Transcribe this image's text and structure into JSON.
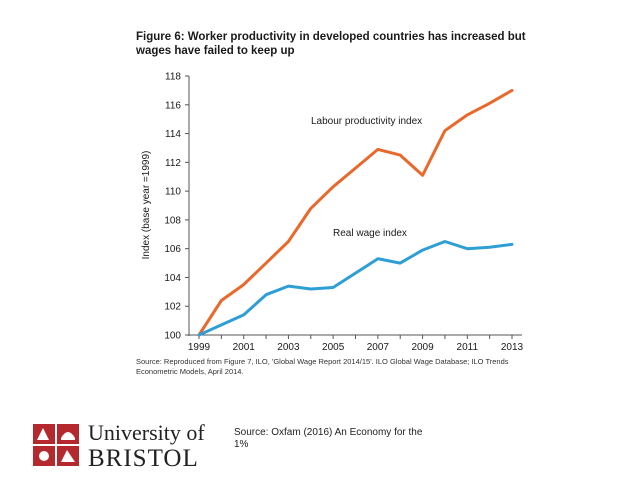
{
  "figure": {
    "title": "Figure 6: Worker productivity in developed countries has increased but wages have failed to keep up",
    "source": "Source: Reproduced from Figure 7, ILO, 'Global Wage Report 2014/15'. ILO Global Wage Database; ILO Trends Econometric Models, April 2014."
  },
  "chart_data": {
    "type": "line",
    "title": "Figure 6: Worker productivity in developed countries has increased but wages have failed to keep up",
    "xlabel": "",
    "ylabel": "Index (base year =1999)",
    "x": [
      1999,
      2000,
      2001,
      2002,
      2003,
      2004,
      2005,
      2006,
      2007,
      2008,
      2009,
      2010,
      2011,
      2012,
      2013
    ],
    "xticks": [
      "1999",
      "2001",
      "2003",
      "2005",
      "2007",
      "2009",
      "2011",
      "2013"
    ],
    "yticks": [
      "100",
      "102",
      "104",
      "106",
      "108",
      "110",
      "112",
      "114",
      "116",
      "118"
    ],
    "ylim": [
      100,
      118
    ],
    "grid": false,
    "series": [
      {
        "name": "Labour productivity index",
        "color": "#e8692b",
        "values": [
          100,
          102.4,
          103.5,
          105.0,
          106.5,
          108.8,
          110.3,
          111.6,
          112.9,
          112.5,
          111.1,
          114.2,
          115.3,
          116.1,
          117.0
        ]
      },
      {
        "name": "Real wage index",
        "color": "#2e9fd5",
        "values": [
          100,
          100.7,
          101.4,
          102.8,
          103.4,
          103.2,
          103.3,
          104.3,
          105.3,
          105.0,
          105.9,
          106.5,
          106.0,
          106.1,
          106.3
        ]
      }
    ]
  },
  "slide": {
    "source_note": "Source: Oxfam (2016) An Economy for the 1%"
  },
  "logo": {
    "line1": "University of",
    "line2": "BRISTOL",
    "color": "#b5292e"
  }
}
